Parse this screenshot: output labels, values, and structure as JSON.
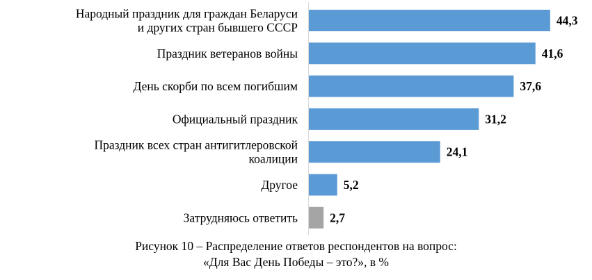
{
  "chart_data": {
    "type": "bar",
    "orientation": "horizontal",
    "categories": [
      [
        "Народный праздник для граждан Беларуси",
        "и других стран бывшего СССР"
      ],
      [
        "Праздник ветеранов войны"
      ],
      [
        "День скорби по всем погибшим"
      ],
      [
        "Официальный праздник"
      ],
      [
        "Праздник всех стран антигитлеровской",
        "коалиции"
      ],
      [
        "Другое"
      ],
      [
        "Затрудняюсь ответить"
      ]
    ],
    "values": [
      44.3,
      41.6,
      37.6,
      31.2,
      24.1,
      5.2,
      2.7
    ],
    "value_labels": [
      "44,3",
      "41,6",
      "37,6",
      "31,2",
      "24,1",
      "5,2",
      "2,7"
    ],
    "colors": [
      "#5b9bd5",
      "#5b9bd5",
      "#5b9bd5",
      "#5b9bd5",
      "#5b9bd5",
      "#5b9bd5",
      "#a5a5a5"
    ],
    "xlim": [
      0,
      50
    ],
    "grid": false,
    "legend": "none"
  },
  "caption": {
    "line1": "Рисунок 10 – Распределение ответов респондентов на вопрос:",
    "line2": "«Для Вас День Победы – это?», в %"
  }
}
